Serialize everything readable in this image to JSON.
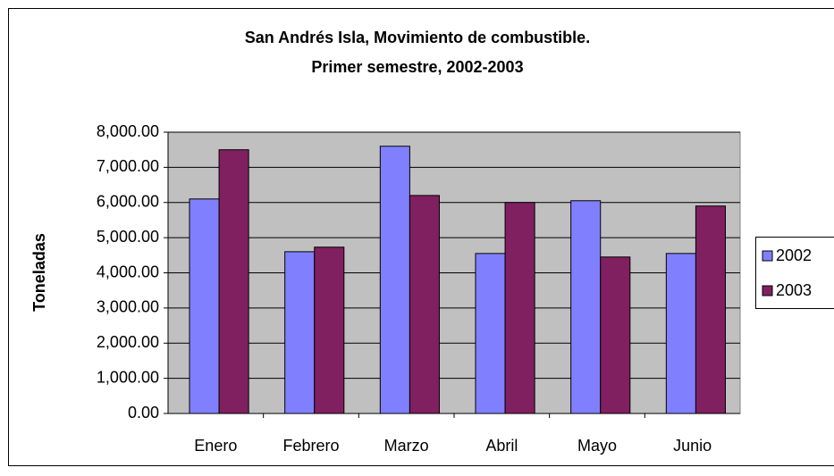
{
  "chart_data": {
    "type": "bar",
    "title": "San Andrés Isla, Movimiento de combustible.",
    "subtitle": "Primer semestre, 2002-2003",
    "y_label": "Toneladas",
    "categories": [
      "Enero",
      "Febrero",
      "Marzo",
      "Abril",
      "Mayo",
      "Junio"
    ],
    "series": [
      {
        "name": "2002",
        "color": "#8080ff",
        "values": [
          6100,
          4600,
          7600,
          4550,
          6050,
          4550
        ]
      },
      {
        "name": "2003",
        "color": "#802060",
        "values": [
          7500,
          4730,
          6200,
          6000,
          4450,
          5900
        ]
      }
    ],
    "ylim": [
      0,
      8000
    ],
    "yticks": [
      {
        "value": 0,
        "label": "0.00"
      },
      {
        "value": 1000,
        "label": "1,000.00"
      },
      {
        "value": 2000,
        "label": "2,000.00"
      },
      {
        "value": 3000,
        "label": "3,000.00"
      },
      {
        "value": 4000,
        "label": "4,000.00"
      },
      {
        "value": 5000,
        "label": "5,000.00"
      },
      {
        "value": 6000,
        "label": "6,000.00"
      },
      {
        "value": 7000,
        "label": "7,000.00"
      },
      {
        "value": 8000,
        "label": "8,000.00"
      }
    ],
    "grid": true,
    "legend": "right"
  }
}
